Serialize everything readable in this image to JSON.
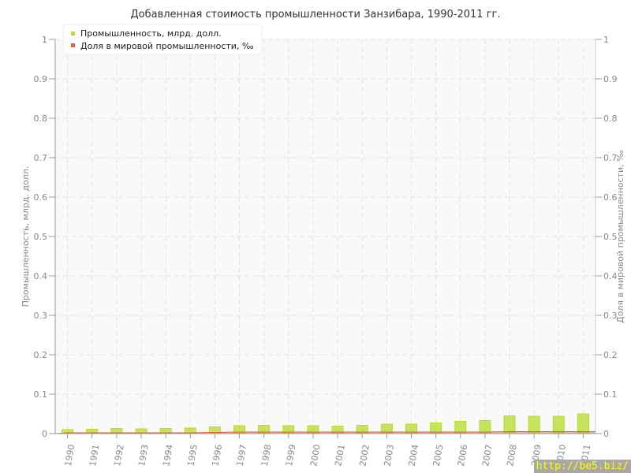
{
  "chart_data": {
    "type": "bar",
    "title": "Добавленная стоимость промышленности Занзибара, 1990-2011 гг.",
    "ylabel": "Промышленность, млрд. долл.",
    "ylabel_right": "Доля в мировой промышленности, ‰",
    "ylim": [
      0,
      1
    ],
    "y2lim": [
      0,
      1
    ],
    "yticks": [
      "0",
      "0.1",
      "0.2",
      "0.3",
      "0.4",
      "0.5",
      "0.6",
      "0.7",
      "0.8",
      "0.9",
      "1"
    ],
    "grid": true,
    "legend_position": "top-left",
    "categories": [
      "1990",
      "1991",
      "1992",
      "1993",
      "1994",
      "1995",
      "1996",
      "1997",
      "1998",
      "1999",
      "2000",
      "2001",
      "2002",
      "2003",
      "2004",
      "2005",
      "2006",
      "2007",
      "2008",
      "2009",
      "2010",
      "2011"
    ],
    "series": [
      {
        "name": "Промышленность, млрд. долл.",
        "type": "bar",
        "axis": "left",
        "color": "#b5dc2a",
        "values": [
          0.01,
          0.011,
          0.013,
          0.012,
          0.013,
          0.014,
          0.017,
          0.02,
          0.021,
          0.02,
          0.02,
          0.019,
          0.021,
          0.024,
          0.024,
          0.027,
          0.031,
          0.033,
          0.045,
          0.044,
          0.044,
          0.05
        ]
      },
      {
        "name": "Доля в мировой промышленности, ‰",
        "type": "area",
        "axis": "right",
        "color": "#e8612c",
        "values": [
          0.002,
          0.002,
          0.002,
          0.002,
          0.002,
          0.002,
          0.003,
          0.004,
          0.004,
          0.004,
          0.004,
          0.004,
          0.004,
          0.004,
          0.004,
          0.004,
          0.004,
          0.004,
          0.005,
          0.005,
          0.005,
          0.005
        ]
      }
    ]
  },
  "watermark": "http://be5.biz/"
}
